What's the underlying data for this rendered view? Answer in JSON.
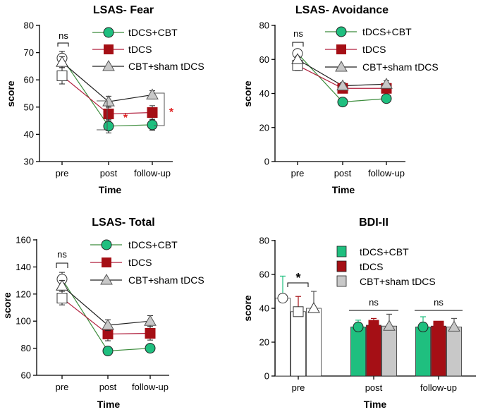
{
  "colors": {
    "tdcs_cbt": "#1fbf7f",
    "tdcs": "#a50f15",
    "cbt_sham": "#c8c8c8",
    "line_tdcs_cbt": "#3c8c3c",
    "line_tdcs": "#b01e3c",
    "line_cbt_sham": "#222222",
    "star_red": "#e02020",
    "axis": "#000000"
  },
  "chart_data": [
    {
      "id": "fear",
      "type": "line",
      "title": "LSAS- Fear",
      "xlabel": "Time",
      "ylabel": "score",
      "categories": [
        "pre",
        "post",
        "follow-up"
      ],
      "ylim": [
        30,
        80
      ],
      "yticks": [
        30,
        40,
        50,
        60,
        70,
        80
      ],
      "series": [
        {
          "name": "tDCS+CBT",
          "values": [
            68,
            43,
            43.5
          ],
          "errors": [
            2.5,
            2.5,
            2
          ]
        },
        {
          "name": "tDCS",
          "values": [
            61.5,
            47.5,
            48
          ],
          "errors": [
            3,
            2.5,
            2.5
          ]
        },
        {
          "name": "CBT+sham tDCS",
          "values": [
            66.5,
            52,
            54.5
          ],
          "errors": [
            2,
            2,
            1.5
          ]
        }
      ],
      "annotations": {
        "pre": "ns",
        "post_star": "*",
        "followup_star": "*"
      }
    },
    {
      "id": "avoidance",
      "type": "line",
      "title": "LSAS- Avoidance",
      "xlabel": "Time",
      "ylabel": "score",
      "categories": [
        "pre",
        "post",
        "follow-up"
      ],
      "ylim": [
        0,
        80
      ],
      "yticks": [
        0,
        20,
        40,
        60,
        80
      ],
      "series": [
        {
          "name": "tDCS+CBT",
          "values": [
            63.5,
            35,
            37
          ],
          "errors": [
            2.5,
            1.5,
            1.5
          ]
        },
        {
          "name": "tDCS",
          "values": [
            56.5,
            43,
            43
          ],
          "errors": [
            3,
            2.5,
            2.5
          ]
        },
        {
          "name": "CBT+sham tDCS",
          "values": [
            60,
            44.5,
            45.5
          ],
          "errors": [
            2,
            2,
            2
          ]
        }
      ],
      "annotations": {
        "pre": "ns"
      }
    },
    {
      "id": "total",
      "type": "line",
      "title": "LSAS- Total",
      "xlabel": "Time",
      "ylabel": "score",
      "categories": [
        "pre",
        "post",
        "follow-up"
      ],
      "ylim": [
        60,
        160
      ],
      "yticks": [
        60,
        80,
        100,
        120,
        140,
        160
      ],
      "series": [
        {
          "name": "tDCS+CBT",
          "values": [
            131,
            78,
            80
          ],
          "errors": [
            5,
            3,
            3
          ]
        },
        {
          "name": "tDCS",
          "values": [
            117,
            90.5,
            91
          ],
          "errors": [
            5,
            5,
            5
          ]
        },
        {
          "name": "CBT+sham tDCS",
          "values": [
            126,
            97,
            100
          ],
          "errors": [
            4,
            4,
            4
          ]
        }
      ],
      "annotations": {
        "pre": "ns"
      }
    },
    {
      "id": "bdi",
      "type": "bar",
      "title": "BDI-II",
      "xlabel": "Time",
      "ylabel": "score",
      "categories": [
        "pre",
        "post",
        "follow-up"
      ],
      "ylim": [
        0,
        80
      ],
      "yticks": [
        0,
        20,
        40,
        60,
        80
      ],
      "series": [
        {
          "name": "tDCS+CBT",
          "values": [
            46,
            29,
            29
          ],
          "errors": [
            13,
            4,
            6
          ]
        },
        {
          "name": "tDCS",
          "values": [
            38,
            30,
            29.5
          ],
          "errors": [
            9,
            4,
            2.5
          ]
        },
        {
          "name": "CBT+sham tDCS",
          "values": [
            40,
            29.5,
            29
          ],
          "errors": [
            10,
            7,
            5
          ]
        }
      ],
      "annotations": {
        "pre": "*",
        "post": "ns",
        "followup": "ns"
      }
    }
  ]
}
